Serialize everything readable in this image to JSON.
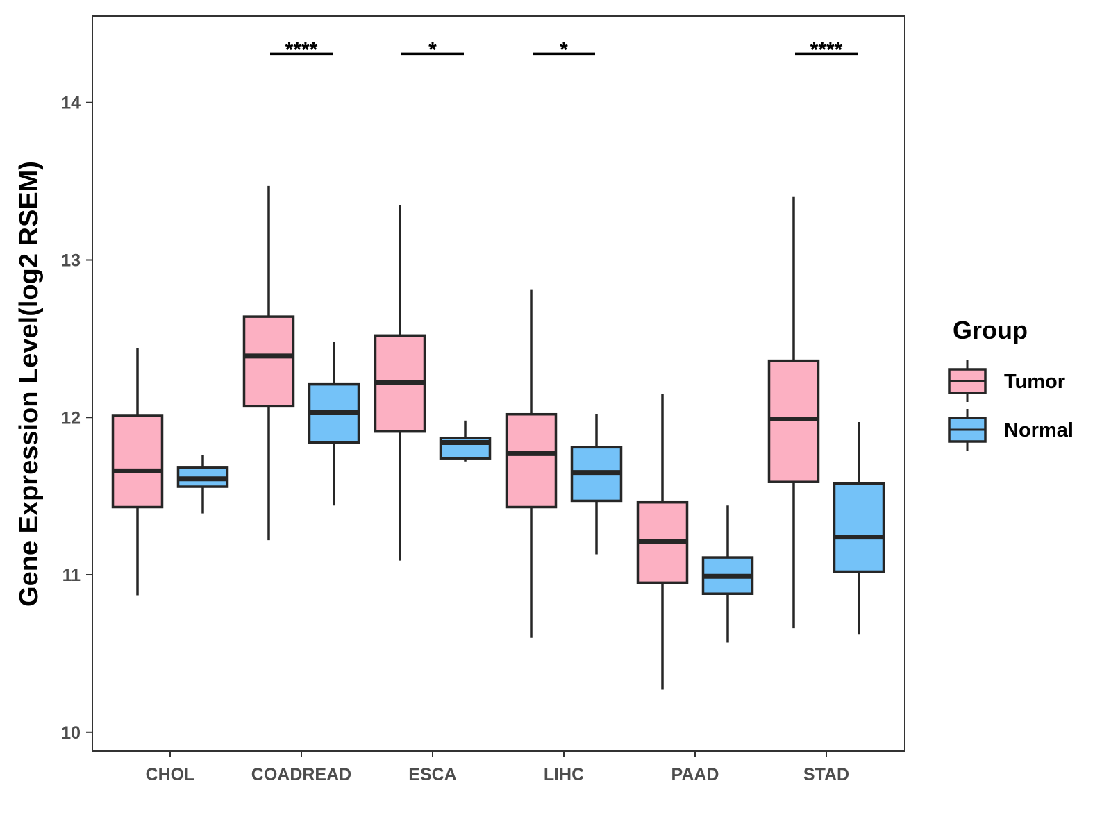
{
  "chart_data": {
    "type": "boxplot",
    "ylabel": "Gene Expression Level(log2 RSEM)",
    "xlabel": "",
    "ylim": [
      9.88,
      14.55
    ],
    "yticks": [
      10,
      11,
      12,
      13,
      14
    ],
    "categories": [
      "CHOL",
      "COADREAD",
      "ESCA",
      "LIHC",
      "PAAD",
      "STAD"
    ],
    "legend": {
      "title": "Group",
      "position": "right",
      "entries": [
        {
          "name": "Tumor",
          "color": "#FCB0C2"
        },
        {
          "name": "Normal",
          "color": "#74C2F8"
        }
      ]
    },
    "series": [
      {
        "name": "Tumor",
        "color": "#FCB0C2",
        "boxes": [
          {
            "category": "CHOL",
            "min": 10.87,
            "q1": 11.43,
            "median": 11.66,
            "q3": 12.01,
            "max": 12.44
          },
          {
            "category": "COADREAD",
            "min": 11.22,
            "q1": 12.07,
            "median": 12.39,
            "q3": 12.64,
            "max": 13.47
          },
          {
            "category": "ESCA",
            "min": 11.09,
            "q1": 11.91,
            "median": 12.22,
            "q3": 12.52,
            "max": 13.35
          },
          {
            "category": "LIHC",
            "min": 10.6,
            "q1": 11.43,
            "median": 11.77,
            "q3": 12.02,
            "max": 12.81
          },
          {
            "category": "PAAD",
            "min": 10.27,
            "q1": 10.95,
            "median": 11.21,
            "q3": 11.46,
            "max": 12.15
          },
          {
            "category": "STAD",
            "min": 10.66,
            "q1": 11.59,
            "median": 11.99,
            "q3": 12.36,
            "max": 13.4
          }
        ]
      },
      {
        "name": "Normal",
        "color": "#74C2F8",
        "boxes": [
          {
            "category": "CHOL",
            "min": 11.39,
            "q1": 11.56,
            "median": 11.61,
            "q3": 11.68,
            "max": 11.76
          },
          {
            "category": "COADREAD",
            "min": 11.44,
            "q1": 11.84,
            "median": 12.03,
            "q3": 12.21,
            "max": 12.48
          },
          {
            "category": "ESCA",
            "min": 11.72,
            "q1": 11.74,
            "median": 11.84,
            "q3": 11.87,
            "max": 11.98
          },
          {
            "category": "LIHC",
            "min": 11.13,
            "q1": 11.47,
            "median": 11.65,
            "q3": 11.81,
            "max": 12.02
          },
          {
            "category": "PAAD",
            "min": 10.57,
            "q1": 10.88,
            "median": 10.99,
            "q3": 11.11,
            "max": 11.44
          },
          {
            "category": "STAD",
            "min": 10.62,
            "q1": 11.02,
            "median": 11.24,
            "q3": 11.58,
            "max": 11.97
          }
        ]
      }
    ],
    "annotations": [
      {
        "category": "CHOL",
        "label": ""
      },
      {
        "category": "COADREAD",
        "label": "****"
      },
      {
        "category": "ESCA",
        "label": "*"
      },
      {
        "category": "LIHC",
        "label": "*"
      },
      {
        "category": "PAAD",
        "label": ""
      },
      {
        "category": "STAD",
        "label": "****"
      }
    ],
    "annotation_y": 14.31
  }
}
